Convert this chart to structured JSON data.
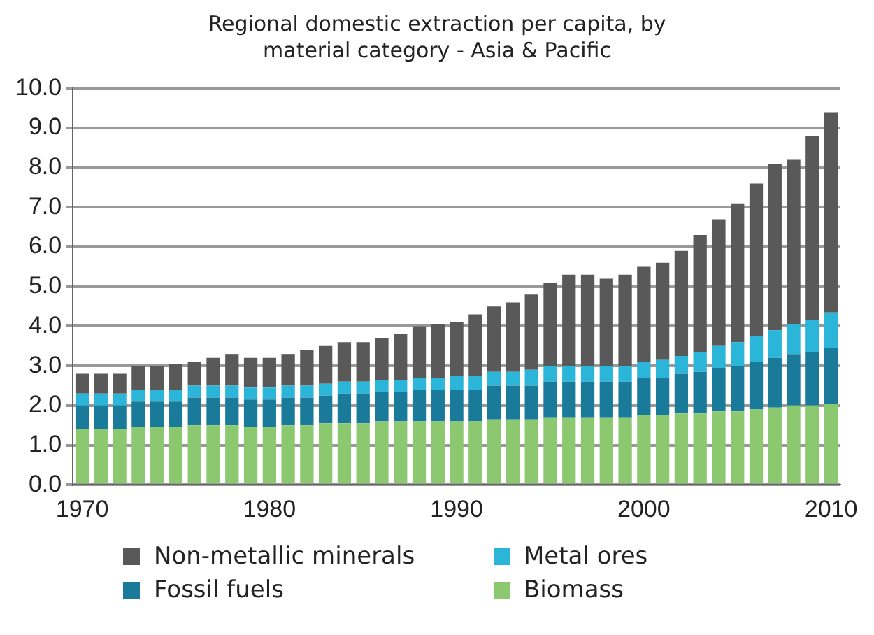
{
  "chart_data": {
    "type": "bar",
    "title": "Regional domestic extraction per capita, by material category - Asia & Pacific",
    "stacked": true,
    "categories": [
      "1970",
      null,
      null,
      null,
      null,
      null,
      null,
      null,
      null,
      null,
      "1980",
      null,
      null,
      null,
      null,
      null,
      null,
      null,
      null,
      null,
      "1990",
      null,
      null,
      null,
      null,
      null,
      null,
      null,
      null,
      null,
      "2000",
      null,
      null,
      null,
      null,
      null,
      null,
      null,
      null,
      null,
      "2010"
    ],
    "series": [
      {
        "name": "Biomass",
        "color": "#8cc870",
        "values": [
          1.4,
          1.4,
          1.4,
          1.45,
          1.45,
          1.45,
          1.5,
          1.5,
          1.5,
          1.45,
          1.45,
          1.5,
          1.5,
          1.55,
          1.55,
          1.55,
          1.6,
          1.6,
          1.6,
          1.6,
          1.6,
          1.6,
          1.65,
          1.65,
          1.65,
          1.7,
          1.7,
          1.7,
          1.7,
          1.7,
          1.75,
          1.75,
          1.8,
          1.8,
          1.85,
          1.85,
          1.9,
          1.95,
          2.0,
          2.0,
          2.05
        ]
      },
      {
        "name": "Fossil fuels",
        "color": "#1a7a99",
        "values": [
          0.6,
          0.6,
          0.6,
          0.65,
          0.65,
          0.65,
          0.7,
          0.7,
          0.7,
          0.7,
          0.7,
          0.7,
          0.7,
          0.7,
          0.75,
          0.75,
          0.75,
          0.75,
          0.8,
          0.8,
          0.8,
          0.8,
          0.85,
          0.85,
          0.85,
          0.9,
          0.9,
          0.9,
          0.9,
          0.9,
          0.95,
          0.95,
          1.0,
          1.05,
          1.1,
          1.15,
          1.2,
          1.25,
          1.3,
          1.35,
          1.4
        ]
      },
      {
        "name": "Metal ores",
        "color": "#2bb5d8",
        "values": [
          0.3,
          0.3,
          0.3,
          0.3,
          0.3,
          0.3,
          0.3,
          0.3,
          0.3,
          0.3,
          0.3,
          0.3,
          0.3,
          0.3,
          0.3,
          0.3,
          0.3,
          0.3,
          0.3,
          0.3,
          0.35,
          0.35,
          0.35,
          0.35,
          0.4,
          0.4,
          0.4,
          0.4,
          0.4,
          0.4,
          0.4,
          0.45,
          0.45,
          0.5,
          0.55,
          0.6,
          0.65,
          0.7,
          0.75,
          0.8,
          0.9
        ]
      },
      {
        "name": "Non-metallic minerals",
        "color": "#595959",
        "values": [
          0.5,
          0.5,
          0.5,
          0.6,
          0.6,
          0.65,
          0.6,
          0.7,
          0.8,
          0.75,
          0.75,
          0.8,
          0.9,
          0.95,
          1.0,
          1.0,
          1.05,
          1.15,
          1.3,
          1.35,
          1.35,
          1.55,
          1.65,
          1.75,
          1.9,
          2.1,
          2.3,
          2.3,
          2.2,
          2.3,
          2.4,
          2.45,
          2.65,
          2.95,
          3.2,
          3.5,
          3.85,
          4.2,
          4.15,
          4.65,
          5.05
        ]
      }
    ],
    "ylim": [
      0,
      10
    ],
    "yticks": [
      {
        "value": 0,
        "label": "0.0"
      },
      {
        "value": 1,
        "label": "1.0"
      },
      {
        "value": 2,
        "label": "2.0"
      },
      {
        "value": 3,
        "label": "3.0"
      },
      {
        "value": 4,
        "label": "4.0"
      },
      {
        "value": 5,
        "label": "5.0"
      },
      {
        "value": 6,
        "label": "6.0"
      },
      {
        "value": 7,
        "label": "7.0"
      },
      {
        "value": 8,
        "label": "8.0"
      },
      {
        "value": 9,
        "label": "9.0"
      },
      {
        "value": 10,
        "label": "10.0"
      }
    ],
    "grid": "y",
    "legend": "bottom"
  }
}
